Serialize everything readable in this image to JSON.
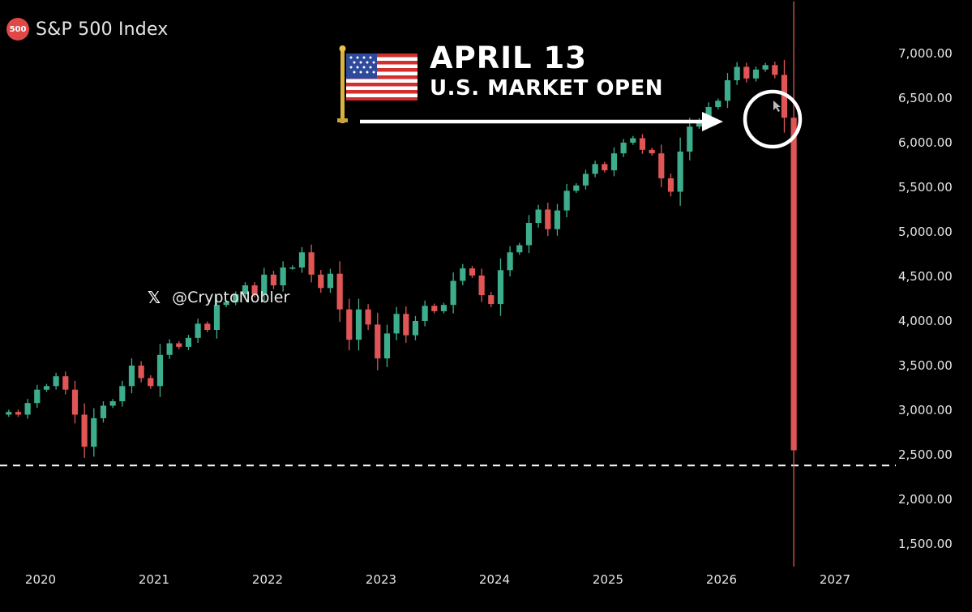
{
  "header": {
    "badge": "500",
    "title": "S&P 500 Index"
  },
  "annotation": {
    "line1": "APRIL 13",
    "line2": "U.S. MARKET OPEN",
    "flag_icon": "us-flag-icon",
    "arrow_icon": "right-arrow-icon",
    "circle_highlight": true
  },
  "watermark": {
    "icon": "x-logo-icon",
    "handle": "@CryptoNobler"
  },
  "colors": {
    "background": "#000000",
    "up": "#3dae8c",
    "down": "#e05555",
    "reference_line": "#ffffff"
  },
  "chart_data": {
    "type": "candlestick",
    "title": "S&P 500 Index",
    "ylim": [
      1250,
      7250
    ],
    "xlim": [
      2019.75,
      2027.4
    ],
    "y_ticks": [
      "7,000.00",
      "6,500.00",
      "6,000.00",
      "5,500.00",
      "5,000.00",
      "4,500.00",
      "4,000.00",
      "3,500.00",
      "3,000.00",
      "2,500.00",
      "2,000.00",
      "1,500.00"
    ],
    "y_tick_values": [
      7000,
      6500,
      6000,
      5500,
      5000,
      4500,
      4000,
      3500,
      3000,
      2500,
      2000,
      1500
    ],
    "x_ticks": [
      "2020",
      "2021",
      "2022",
      "2023",
      "2024",
      "2025",
      "2026",
      "2027"
    ],
    "x_tick_values": [
      2020,
      2021,
      2022,
      2023,
      2024,
      2025,
      2026,
      2027
    ],
    "reference_line": {
      "value": 2380,
      "style": "dashed"
    },
    "grid": false,
    "close": [
      2980,
      2950,
      3080,
      3230,
      3270,
      3380,
      3230,
      2950,
      2590,
      2910,
      3050,
      3100,
      3270,
      3500,
      3360,
      3270,
      3620,
      3750,
      3710,
      3810,
      3970,
      3900,
      4180,
      4210,
      4300,
      4400,
      4300,
      4520,
      4400,
      4600,
      4600,
      4770,
      4520,
      4370,
      4530,
      4130,
      3790,
      4130,
      3960,
      3580,
      3860,
      4080,
      3840,
      4000,
      4170,
      4110,
      4180,
      4450,
      4590,
      4510,
      4290,
      4190,
      4570,
      4770,
      4850,
      5100,
      5250,
      5030,
      5240,
      5460,
      5520,
      5650,
      5760,
      5690,
      5880,
      6000,
      6050,
      5920,
      5880,
      5600,
      5450,
      5900,
      6180,
      6250,
      6400,
      6470,
      6700,
      6850,
      6720,
      6820,
      6870,
      6760,
      6280,
      2550
    ]
  }
}
